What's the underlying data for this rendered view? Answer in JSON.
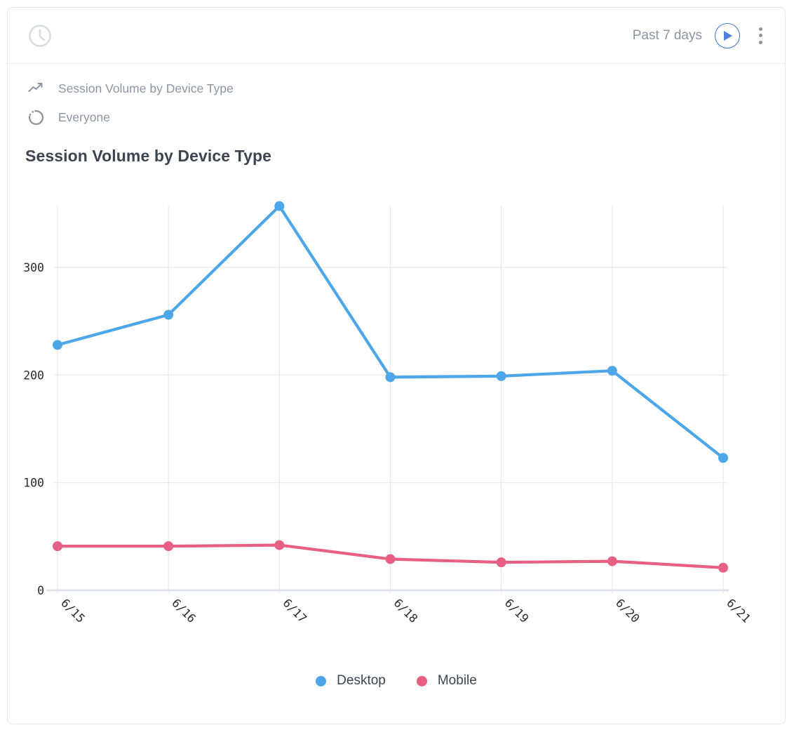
{
  "header": {
    "date_range": "Past 7 days"
  },
  "meta": {
    "chart_type_label": "Session Volume by Device Type",
    "audience_label": "Everyone"
  },
  "title": "Session Volume by Device Type",
  "colors": {
    "desktop_blue": "#4da6e8",
    "mobile_pink": "#e85f84",
    "accent_blue": "#4d82da",
    "grid": "#e4e8ec",
    "axis": "#dbe0e6"
  },
  "chart_data": {
    "type": "line",
    "title": "Session Volume by Device Type",
    "x": [
      "6/15",
      "6/16",
      "6/17",
      "6/18",
      "6/19",
      "6/20",
      "6/21"
    ],
    "series": [
      {
        "name": "Desktop",
        "color": "#4da6e8",
        "values": [
          228,
          256,
          357,
          198,
          199,
          204,
          123
        ]
      },
      {
        "name": "Mobile",
        "color": "#e85f84",
        "values": [
          41,
          41,
          42,
          29,
          26,
          27,
          21
        ]
      }
    ],
    "y_ticks": [
      0,
      100,
      200,
      300
    ],
    "ylim": [
      0,
      360
    ],
    "xlabel": "",
    "ylabel": "",
    "grid": true,
    "legend_position": "bottom"
  },
  "legend": [
    {
      "label": "Desktop",
      "color": "#4da6e8"
    },
    {
      "label": "Mobile",
      "color": "#e85f84"
    }
  ]
}
